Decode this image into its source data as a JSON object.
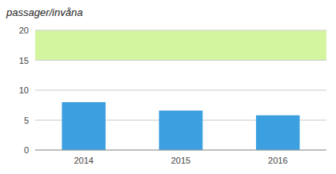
{
  "chart_data": {
    "type": "bar",
    "title": "passager/invåna",
    "categories": [
      "2014",
      "2015",
      "2016"
    ],
    "values": [
      8.0,
      6.6,
      5.8
    ],
    "color": "#3ca0e0",
    "band": {
      "from": 15,
      "to": 20,
      "color": "#d4f5a0"
    },
    "ylim": [
      0,
      20
    ],
    "yticks": [
      0,
      5,
      10,
      15,
      20
    ],
    "grid": true
  }
}
